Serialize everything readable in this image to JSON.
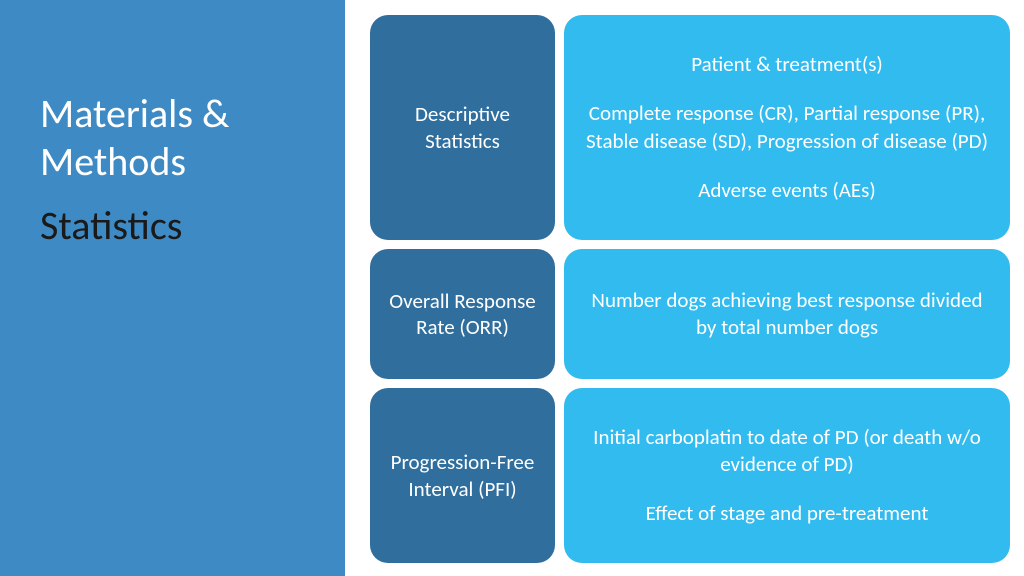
{
  "colors": {
    "sidebar_bg": "#3e8ac4",
    "dark_box": "#2f6e9d",
    "light_box": "#32bbef",
    "title_color": "#ffffff",
    "subtitle_color": "#1a1a1a",
    "box_text": "#ffffff"
  },
  "sidebar": {
    "title": "Materials & Methods",
    "subtitle": "Statistics"
  },
  "rows": [
    {
      "label": "Descriptive Statistics",
      "desc_lines": [
        "Patient & treatment(s)",
        "Complete response (CR), Partial response (PR), Stable disease (SD), Progression of disease (PD)",
        "Adverse events (AEs)"
      ]
    },
    {
      "label": "Overall Response Rate (ORR)",
      "desc_lines": [
        "Number dogs achieving best response divided by total number dogs"
      ]
    },
    {
      "label": "Progression-Free Interval (PFI)",
      "desc_lines": [
        "Initial carboplatin to date of PD (or death w/o evidence of PD)",
        "Effect of stage and pre-treatment"
      ]
    }
  ]
}
